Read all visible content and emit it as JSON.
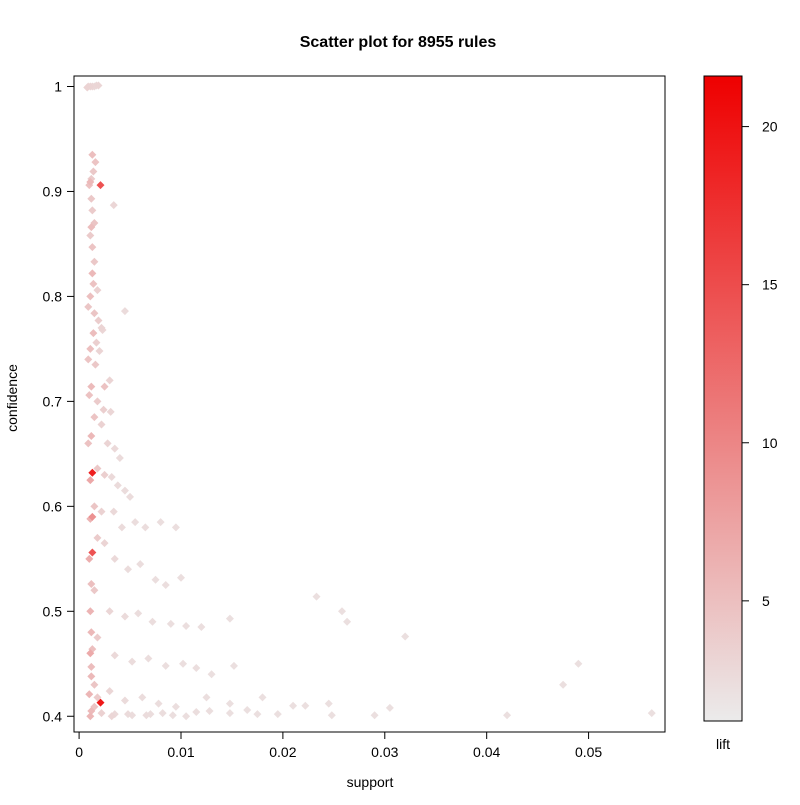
{
  "chart_data": {
    "type": "scatter",
    "title": "Scatter plot for 8955 rules",
    "xlabel": "support",
    "ylabel": "confidence",
    "xlim": [
      -0.0005,
      0.0575
    ],
    "ylim": [
      0.385,
      1.01
    ],
    "x_ticks": [
      0,
      0.01,
      0.02,
      0.03,
      0.04,
      0.05
    ],
    "x_tick_labels": [
      "0",
      "0.01",
      "0.02",
      "0.03",
      "0.04",
      "0.05"
    ],
    "y_ticks": [
      0.4,
      0.5,
      0.6,
      0.7,
      0.8,
      0.9,
      1.0
    ],
    "y_tick_labels": [
      "0.4",
      "0.5",
      "0.6",
      "0.7",
      "0.8",
      "0.9",
      "1"
    ],
    "grid": false,
    "colorbar": {
      "label": "lift",
      "range": [
        1.2,
        21.6
      ],
      "ticks": [
        5,
        10,
        15,
        20
      ],
      "tick_labels": [
        "5",
        "10",
        "15",
        "20"
      ],
      "color_low": "#ebebeb",
      "color_high": "#ee0000"
    },
    "point_shape": "diamond",
    "series": [
      {
        "x": [
          0.0009,
          0.0011,
          0.0013,
          0.0015,
          0.0017,
          0.0019,
          0.0008,
          0.0013,
          0.0016,
          0.0014,
          0.0012,
          0.0011,
          0.001,
          0.0012,
          0.0013,
          0.0015,
          0.0012,
          0.0011,
          0.0013,
          0.0021,
          0.0034,
          0.0015,
          0.0013,
          0.0014,
          0.0018,
          0.0011,
          0.0009,
          0.0015,
          0.0019,
          0.0022,
          0.0014,
          0.0017,
          0.002,
          0.0011,
          0.0009,
          0.0016,
          0.0023,
          0.0045,
          0.0025,
          0.003,
          0.0012,
          0.001,
          0.0018,
          0.0024,
          0.0031,
          0.0015,
          0.0022,
          0.0012,
          0.0009,
          0.0028,
          0.0035,
          0.004,
          0.0018,
          0.0025,
          0.0013,
          0.0011,
          0.0032,
          0.0038,
          0.0045,
          0.005,
          0.0015,
          0.0022,
          0.0013,
          0.0011,
          0.0034,
          0.0042,
          0.0055,
          0.0065,
          0.008,
          0.0095,
          0.0018,
          0.0025,
          0.0013,
          0.001,
          0.0035,
          0.0048,
          0.006,
          0.0075,
          0.01,
          0.0085,
          0.0012,
          0.0015,
          0.0011,
          0.003,
          0.0045,
          0.0058,
          0.0072,
          0.009,
          0.0105,
          0.012,
          0.0148,
          0.0012,
          0.0018,
          0.0013,
          0.0011,
          0.0035,
          0.0052,
          0.0068,
          0.0085,
          0.0102,
          0.0115,
          0.013,
          0.0152,
          0.0012,
          0.0015,
          0.001,
          0.003,
          0.0045,
          0.0062,
          0.0078,
          0.0095,
          0.0125,
          0.0148,
          0.018,
          0.0222,
          0.0233,
          0.0258,
          0.0263,
          0.032,
          0.0012,
          0.0018,
          0.0021,
          0.0011,
          0.0032,
          0.0048,
          0.0066,
          0.0082,
          0.0105,
          0.0128,
          0.0165,
          0.0195,
          0.0245,
          0.0305,
          0.0475,
          0.049,
          0.0015,
          0.0012,
          0.0022,
          0.0035,
          0.0052,
          0.007,
          0.0092,
          0.0115,
          0.0148,
          0.0175,
          0.021,
          0.0248,
          0.029,
          0.042,
          0.0562
        ],
        "y": [
          1.0,
          1.0,
          1.0,
          1.0,
          1.001,
          1.001,
          0.999,
          0.935,
          0.928,
          0.919,
          0.912,
          0.909,
          0.906,
          0.893,
          0.882,
          0.87,
          0.866,
          0.858,
          0.847,
          0.906,
          0.887,
          0.833,
          0.822,
          0.812,
          0.806,
          0.8,
          0.79,
          0.784,
          0.777,
          0.77,
          0.765,
          0.756,
          0.748,
          0.75,
          0.74,
          0.735,
          0.768,
          0.786,
          0.714,
          0.72,
          0.714,
          0.706,
          0.7,
          0.692,
          0.69,
          0.685,
          0.678,
          0.667,
          0.66,
          0.66,
          0.655,
          0.646,
          0.636,
          0.63,
          0.632,
          0.625,
          0.628,
          0.62,
          0.615,
          0.609,
          0.6,
          0.595,
          0.59,
          0.588,
          0.595,
          0.58,
          0.585,
          0.58,
          0.585,
          0.58,
          0.57,
          0.565,
          0.556,
          0.55,
          0.55,
          0.54,
          0.545,
          0.53,
          0.532,
          0.525,
          0.526,
          0.52,
          0.5,
          0.5,
          0.495,
          0.498,
          0.49,
          0.488,
          0.486,
          0.485,
          0.493,
          0.48,
          0.475,
          0.464,
          0.46,
          0.458,
          0.452,
          0.455,
          0.448,
          0.45,
          0.446,
          0.44,
          0.448,
          0.438,
          0.43,
          0.421,
          0.424,
          0.415,
          0.418,
          0.412,
          0.409,
          0.418,
          0.412,
          0.418,
          0.41,
          0.514,
          0.5,
          0.49,
          0.476,
          0.447,
          0.418,
          0.413,
          0.4,
          0.4,
          0.402,
          0.401,
          0.403,
          0.4,
          0.405,
          0.406,
          0.402,
          0.412,
          0.408,
          0.43,
          0.45,
          0.409,
          0.405,
          0.403,
          0.402,
          0.401,
          0.402,
          0.401,
          0.404,
          0.403,
          0.402,
          0.41,
          0.401,
          0.401,
          0.401,
          0.403
        ],
        "lift": [
          3.0,
          3.2,
          3.0,
          2.8,
          2.9,
          3.1,
          3.3,
          5.0,
          4.6,
          4.2,
          4.0,
          5.5,
          4.8,
          4.2,
          4.0,
          4.5,
          5.2,
          4.0,
          4.6,
          14.5,
          3.0,
          4.2,
          5.5,
          4.8,
          3.5,
          5.0,
          4.4,
          4.5,
          3.8,
          3.2,
          5.2,
          3.6,
          3.2,
          5.0,
          4.6,
          4.2,
          3.0,
          2.6,
          4.8,
          3.2,
          5.4,
          4.8,
          4.0,
          3.6,
          3.0,
          4.6,
          3.4,
          5.6,
          4.8,
          3.2,
          2.8,
          2.6,
          4.2,
          3.6,
          19.0,
          7.0,
          2.8,
          2.6,
          2.5,
          2.5,
          4.5,
          3.4,
          9.0,
          6.0,
          2.8,
          2.6,
          2.4,
          2.4,
          2.3,
          2.3,
          4.0,
          3.2,
          14.5,
          6.5,
          2.8,
          2.5,
          2.4,
          2.3,
          2.3,
          2.3,
          5.0,
          4.2,
          6.0,
          3.0,
          2.6,
          2.4,
          2.4,
          2.3,
          2.3,
          2.3,
          2.2,
          5.5,
          4.0,
          5.0,
          6.8,
          2.8,
          2.5,
          2.4,
          2.3,
          2.3,
          2.3,
          2.2,
          2.2,
          5.5,
          4.5,
          5.8,
          3.0,
          2.6,
          2.5,
          2.4,
          2.3,
          2.3,
          2.2,
          2.2,
          2.2,
          2.2,
          2.2,
          2.2,
          2.2,
          5.2,
          4.0,
          19.5,
          5.8,
          3.0,
          2.6,
          2.5,
          2.4,
          2.3,
          2.3,
          2.2,
          2.2,
          2.2,
          2.2,
          2.2,
          2.2,
          4.6,
          5.5,
          3.5,
          2.8,
          2.5,
          2.4,
          2.3,
          2.3,
          2.2,
          2.2,
          2.2,
          2.2,
          2.2,
          2.2,
          2.2
        ]
      }
    ]
  }
}
